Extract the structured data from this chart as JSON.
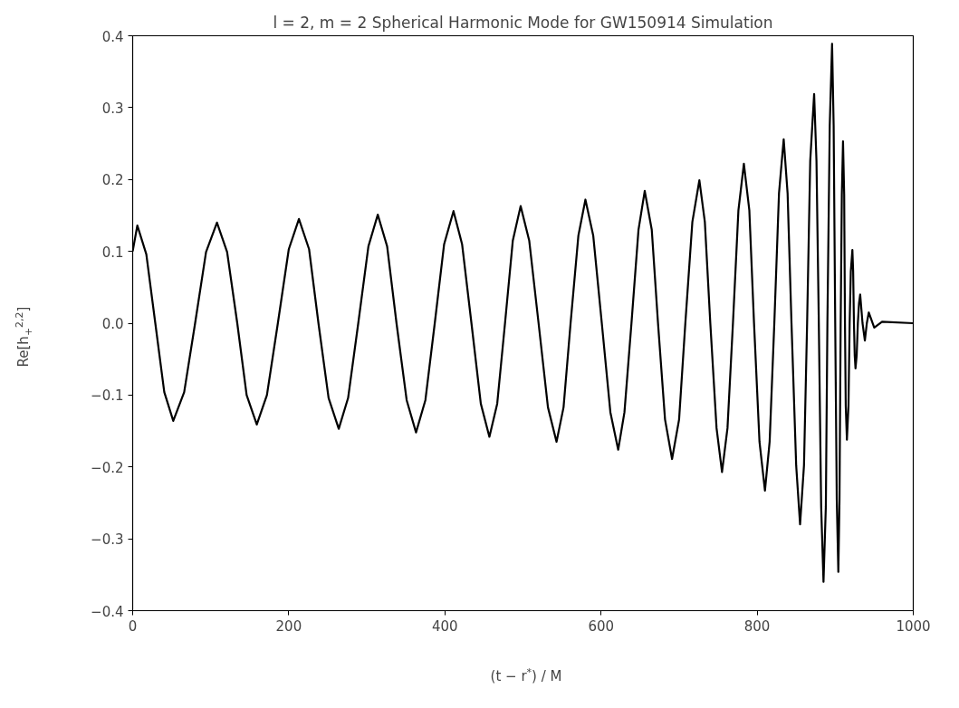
{
  "chart_data": {
    "type": "line",
    "title": "l = 2, m = 2 Spherical Harmonic Mode for GW150914 Simulation",
    "xlabel": "(t − r$^{*}$) / M",
    "ylabel": "Re[h$_{+}$$^{2,2}$]",
    "x": [
      0,
      6,
      17.5,
      29,
      40.5,
      52,
      66,
      80,
      94,
      108,
      121,
      134,
      146,
      159,
      172,
      186,
      200,
      213,
      226,
      238,
      251,
      264,
      276,
      289,
      302,
      314,
      326,
      338,
      351,
      363,
      375,
      387,
      399,
      411,
      422,
      434,
      446,
      457,
      467,
      477,
      487,
      497,
      508,
      520,
      532,
      543,
      552,
      561,
      571,
      580,
      590,
      601,
      612,
      622,
      630,
      639,
      648,
      656,
      665,
      673,
      682,
      691,
      700,
      708,
      717,
      726,
      733,
      740,
      748,
      755,
      762,
      769,
      776,
      783,
      790,
      796,
      803,
      810,
      816,
      822,
      828,
      834,
      839,
      844,
      850,
      855,
      860,
      864,
      868,
      873,
      876,
      879,
      882,
      885,
      888,
      890,
      893,
      896,
      898,
      900,
      902,
      904,
      905.5,
      907,
      908.5,
      910,
      911.5,
      912.5,
      913.5,
      915,
      917,
      918.5,
      920,
      922,
      923,
      924,
      925,
      926,
      927.5,
      929,
      930.5,
      932,
      935,
      938,
      940.5,
      943,
      950,
      960,
      1000
    ],
    "series": [
      {
        "color": "#000000",
        "values": [
          0.1,
          0.136,
          0.096,
          0,
          -0.096,
          -0.136,
          -0.096,
          0,
          0.099,
          0.14,
          0.099,
          0,
          -0.1,
          -0.141,
          -0.1,
          0,
          0.103,
          0.145,
          0.103,
          0,
          -0.104,
          -0.147,
          -0.104,
          0,
          0.107,
          0.151,
          0.107,
          0,
          -0.107,
          -0.152,
          -0.107,
          0,
          0.11,
          0.156,
          0.11,
          0,
          -0.112,
          -0.158,
          -0.112,
          0,
          0.115,
          0.163,
          0.115,
          0,
          -0.117,
          -0.165,
          -0.117,
          0,
          0.122,
          0.172,
          0.122,
          0,
          -0.124,
          -0.176,
          -0.124,
          0,
          0.13,
          0.184,
          0.13,
          0,
          -0.134,
          -0.189,
          -0.134,
          0,
          0.141,
          0.199,
          0.141,
          0,
          -0.146,
          -0.207,
          -0.146,
          0,
          0.157,
          0.222,
          0.157,
          0,
          -0.165,
          -0.233,
          -0.165,
          0,
          0.181,
          0.256,
          0.181,
          0,
          -0.198,
          -0.28,
          -0.198,
          0,
          0.226,
          0.319,
          0.226,
          0,
          -0.255,
          -0.36,
          -0.255,
          0,
          0.275,
          0.389,
          0.275,
          0,
          -0.245,
          -0.346,
          -0.245,
          0,
          0.179,
          0.253,
          0.179,
          0,
          -0.115,
          -0.162,
          -0.115,
          0,
          0.072,
          0.102,
          0.072,
          0,
          -0.045,
          -0.063,
          -0.045,
          0,
          0.028,
          0.04,
          0,
          -0.024,
          0,
          0.015,
          -0.006,
          0.002,
          0
        ]
      }
    ],
    "xlim": [
      0,
      1000
    ],
    "xticks": [
      0,
      200,
      400,
      600,
      800,
      1000
    ],
    "ylim": [
      -0.4,
      0.4
    ],
    "yticks": [
      {
        "value": -0.4,
        "label": "−0.4"
      },
      {
        "value": -0.3,
        "label": "−0.3"
      },
      {
        "value": -0.2,
        "label": "−0.2"
      },
      {
        "value": -0.1,
        "label": "−0.1"
      },
      {
        "value": 0,
        "label": "0.0"
      },
      {
        "value": 0.1,
        "label": "0.1"
      },
      {
        "value": 0.2,
        "label": "0.2"
      },
      {
        "value": 0.3,
        "label": "0.3"
      },
      {
        "value": 0.4,
        "label": "0.4"
      }
    ],
    "grid": false,
    "marker": "none",
    "line_style": "solid"
  }
}
